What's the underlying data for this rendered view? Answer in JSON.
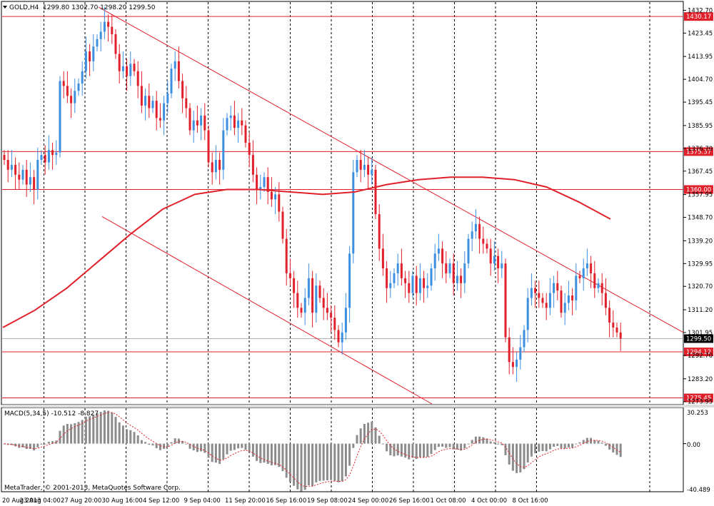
{
  "header": {
    "symbol_label": "GOLD,H4",
    "ohlc": "1299.80 1302.70 1298.20 1299.50"
  },
  "macd": {
    "label": "MACD(5,34,5) -10.512 -8.827",
    "axis_labels": [
      "30.253",
      "0.00",
      "-40.489"
    ]
  },
  "copyright": "MetaTrader, © 2001-2013, MetaQuotes Software Corp.",
  "price_axis_labels": [
    "1432.70",
    "1423.45",
    "1413.95",
    "1404.70",
    "1395.45",
    "1385.95",
    "1376.70",
    "1367.45",
    "1357.95",
    "1348.70",
    "1339.20",
    "1329.95",
    "1320.70",
    "1311.20",
    "1301.95",
    "1292.70",
    "1283.20",
    "1273.95"
  ],
  "time_labels": [
    "20 Aug 2013",
    "23 Aug 04:00",
    "27 Aug 20:00",
    "30 Aug 16:00",
    "4 Sep 12:00",
    "9 Sep 04:00",
    "11 Sep 20:00",
    "16 Sep 16:00",
    "19 Sep 08:00",
    "24 Sep 00:00",
    "26 Sep 16:00",
    "1 Oct 08:00",
    "4 Oct 00:00",
    "8 Oct 16:00"
  ],
  "levels": [
    {
      "value": 1430.17,
      "label": "1430.17"
    },
    {
      "value": 1375.37,
      "label": "1375.37"
    },
    {
      "value": 1360.0,
      "label": "1360.00"
    },
    {
      "value": 1294.12,
      "label": "1294.12"
    },
    {
      "value": 1275.45,
      "label": "1275.45"
    }
  ],
  "current_price": {
    "value": 1299.5,
    "label": "1299.50"
  },
  "colors": {
    "up": "#3d8fe0",
    "down": "#e0202a",
    "line": "#e0202a",
    "macd": "#8c8c8c",
    "signal": "#e0202a"
  },
  "chart_data": {
    "type": "candlestick",
    "symbol": "GOLD",
    "timeframe": "H4",
    "ylim": [
      1273.0,
      1436.0
    ],
    "closes": [
      1372,
      1368,
      1370,
      1366,
      1364,
      1368,
      1362,
      1365,
      1360,
      1372,
      1374,
      1371,
      1376,
      1374,
      1375,
      1404,
      1402,
      1398,
      1395,
      1400,
      1403,
      1408,
      1416,
      1412,
      1418,
      1421,
      1424,
      1428,
      1426,
      1423,
      1415,
      1408,
      1410,
      1406,
      1411,
      1408,
      1402,
      1394,
      1398,
      1393,
      1396,
      1389,
      1388,
      1395,
      1399,
      1409,
      1412,
      1404,
      1397,
      1393,
      1384,
      1388,
      1386,
      1390,
      1384,
      1371,
      1367,
      1372,
      1368,
      1384,
      1389,
      1390,
      1385,
      1388,
      1386,
      1379,
      1374,
      1366,
      1360,
      1361,
      1365,
      1359,
      1356,
      1358,
      1351,
      1340,
      1326,
      1324,
      1318,
      1312,
      1310,
      1316,
      1324,
      1310,
      1321,
      1316,
      1312,
      1310,
      1308,
      1303,
      1298,
      1302,
      1312,
      1334,
      1367,
      1372,
      1368,
      1370,
      1366,
      1368,
      1350,
      1336,
      1328,
      1320,
      1322,
      1326,
      1330,
      1324,
      1322,
      1318,
      1325,
      1318,
      1324,
      1320,
      1321,
      1328,
      1334,
      1336,
      1330,
      1326,
      1330,
      1322,
      1325,
      1322,
      1330,
      1340,
      1343,
      1346,
      1340,
      1338,
      1336,
      1330,
      1333,
      1328,
      1330,
      1300,
      1290,
      1288,
      1291,
      1296,
      1303,
      1316,
      1320,
      1318,
      1316,
      1314,
      1312,
      1318,
      1322,
      1319,
      1310,
      1314,
      1317,
      1315,
      1325,
      1324,
      1328,
      1330,
      1326,
      1320,
      1322,
      1318,
      1312,
      1306,
      1304,
      1302,
      1299.5
    ],
    "ma_period": 200,
    "ma_values": [
      1304,
      1311,
      1320,
      1331,
      1342,
      1352,
      1358,
      1360,
      1360,
      1359,
      1358,
      1359,
      1362,
      1364,
      1365,
      1365,
      1364,
      1361,
      1355,
      1348
    ],
    "trendlines": [
      {
        "from": [
          "27 Aug 20:00",
          1434
        ],
        "to": [
          "9 Oct",
          1301
        ]
      },
      {
        "from": [
          "23 Aug",
          1349
        ],
        "to": [
          "1 Oct",
          1272
        ]
      }
    ],
    "macd_ylim": [
      -40.489,
      30.253
    ],
    "macd_fast": 5,
    "macd_slow": 34,
    "macd_signal": 5,
    "macd_last": -10.512,
    "signal_last": -8.827
  }
}
